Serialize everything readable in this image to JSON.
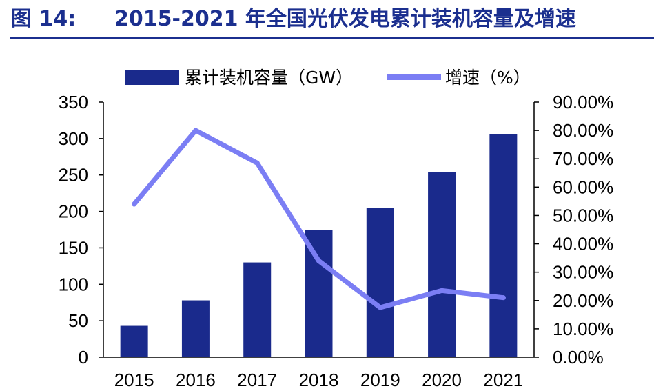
{
  "figure": {
    "label": "图 14:",
    "title": "2015-2021 年全国光伏发电累计装机容量及增速"
  },
  "legend": {
    "bar_label": "累计装机容量（GW）",
    "line_label": "增速（%）"
  },
  "colors": {
    "bar": "#1a2a8c",
    "line": "#7b7ef4",
    "title": "#1b2f8f"
  },
  "chart_data": {
    "type": "bar+line",
    "categories": [
      "2015",
      "2016",
      "2017",
      "2018",
      "2019",
      "2020",
      "2021"
    ],
    "series": [
      {
        "name": "累计装机容量（GW）",
        "type": "bar",
        "axis": "left",
        "values": [
          43,
          78,
          130,
          175,
          205,
          254,
          306
        ]
      },
      {
        "name": "增速（%）",
        "type": "line",
        "axis": "right",
        "values": [
          54.0,
          80.0,
          68.5,
          34.0,
          17.5,
          23.5,
          21.0
        ]
      }
    ],
    "y_left": {
      "min": 0,
      "max": 350,
      "ticks": [
        "0",
        "50",
        "100",
        "150",
        "200",
        "250",
        "300",
        "350"
      ]
    },
    "y_right": {
      "min": 0,
      "max": 90,
      "ticks": [
        "0.00%",
        "10.00%",
        "20.00%",
        "30.00%",
        "40.00%",
        "50.00%",
        "60.00%",
        "70.00%",
        "80.00%",
        "90.00%"
      ]
    },
    "grid": false,
    "legend_position": "top"
  }
}
